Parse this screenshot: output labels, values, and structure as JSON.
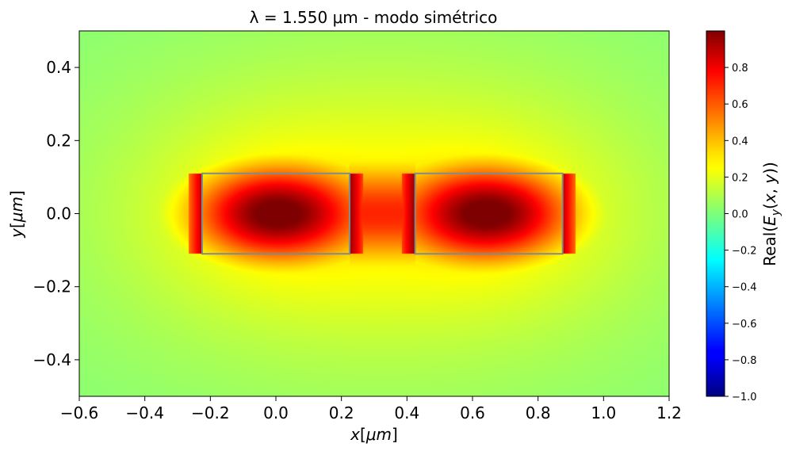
{
  "chart_data": {
    "type": "heatmap",
    "title": "λ = 1.550 μm - modo simétrico",
    "xlabel": "x[μm]",
    "ylabel": "y[μm]",
    "colorbar_label": "Real(E_y(x, y))",
    "colormap": "jet",
    "xlim": [
      -0.6,
      1.2
    ],
    "ylim": [
      -0.5,
      0.5
    ],
    "clim": [
      -1.0,
      1.0
    ],
    "x_ticks": [
      -0.6,
      -0.4,
      -0.2,
      0.0,
      0.2,
      0.4,
      0.6,
      0.8,
      1.0,
      1.2
    ],
    "x_tick_labels": [
      "−0.6",
      "−0.4",
      "−0.2",
      "0.0",
      "0.2",
      "0.4",
      "0.6",
      "0.8",
      "1.0",
      "1.2"
    ],
    "y_ticks": [
      0.4,
      0.2,
      0.0,
      -0.2,
      -0.4
    ],
    "y_tick_labels": [
      "0.4",
      "0.2",
      "0.0",
      "−0.2",
      "−0.4"
    ],
    "colorbar_ticks": [
      0.8,
      0.6,
      0.4,
      0.2,
      0.0,
      -0.2,
      -0.4,
      -0.6,
      -0.8,
      -1.0
    ],
    "colorbar_tick_labels": [
      "0.8",
      "0.6",
      "0.4",
      "0.2",
      "0.0",
      "−0.2",
      "−0.4",
      "−0.6",
      "−0.8",
      "−1.0"
    ],
    "waveguides": [
      {
        "x": [
          -0.225,
          0.225
        ],
        "y": [
          -0.11,
          0.11
        ]
      },
      {
        "x": [
          0.425,
          0.875
        ],
        "y": [
          -0.11,
          0.11
        ]
      }
    ],
    "field_peaks": [
      {
        "x": 0.0,
        "y": 0.0,
        "value": 1.0
      },
      {
        "x": 0.65,
        "y": 0.0,
        "value": 1.0
      }
    ],
    "gap_value_approx": 0.55,
    "background_value_approx": 0.05,
    "waveguide_outline_color": "#7f8c8d"
  }
}
